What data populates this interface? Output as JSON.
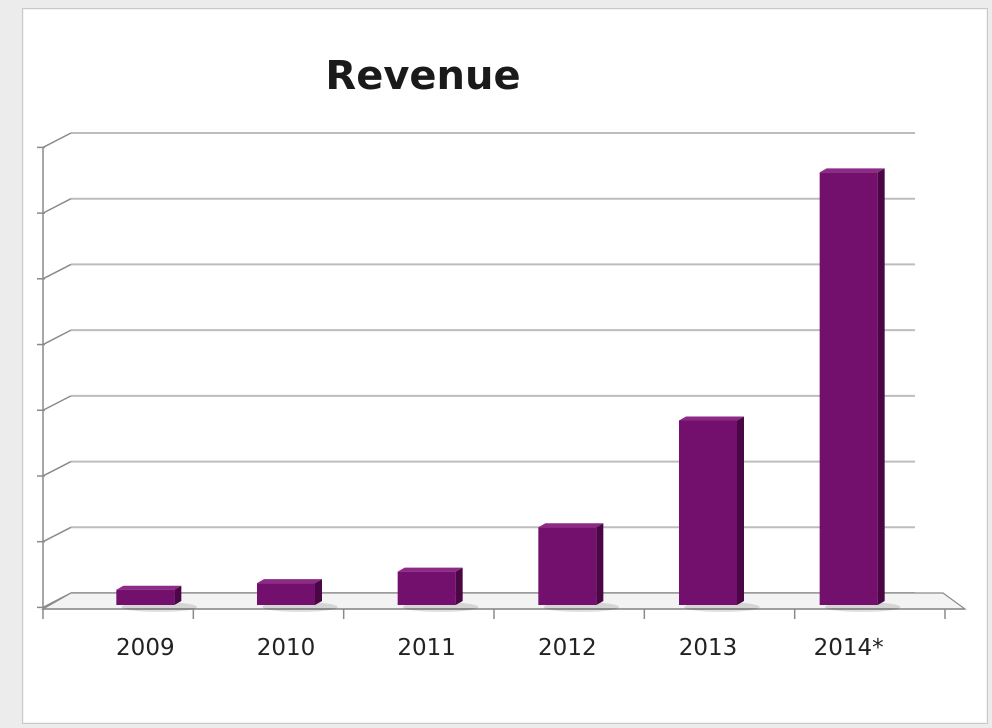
{
  "chart_data": {
    "type": "bar",
    "title": "Revenue",
    "xlabel": "",
    "ylabel": "",
    "categories": [
      "2009",
      "2010",
      "2011",
      "2012",
      "2013",
      "2014*"
    ],
    "series": [
      {
        "values": [
          0.1,
          0.3,
          0.65,
          2.0,
          5.25,
          12.8
        ]
      }
    ],
    "ylim": [
      0,
      14
    ],
    "grid": true,
    "legend": "none"
  },
  "colors": {
    "bar_front": "#730f6c",
    "bar_side": "#4a0645",
    "bar_top": "#8d2a86",
    "grid": "#bdbdbd",
    "axis": "#8a8a8a"
  }
}
